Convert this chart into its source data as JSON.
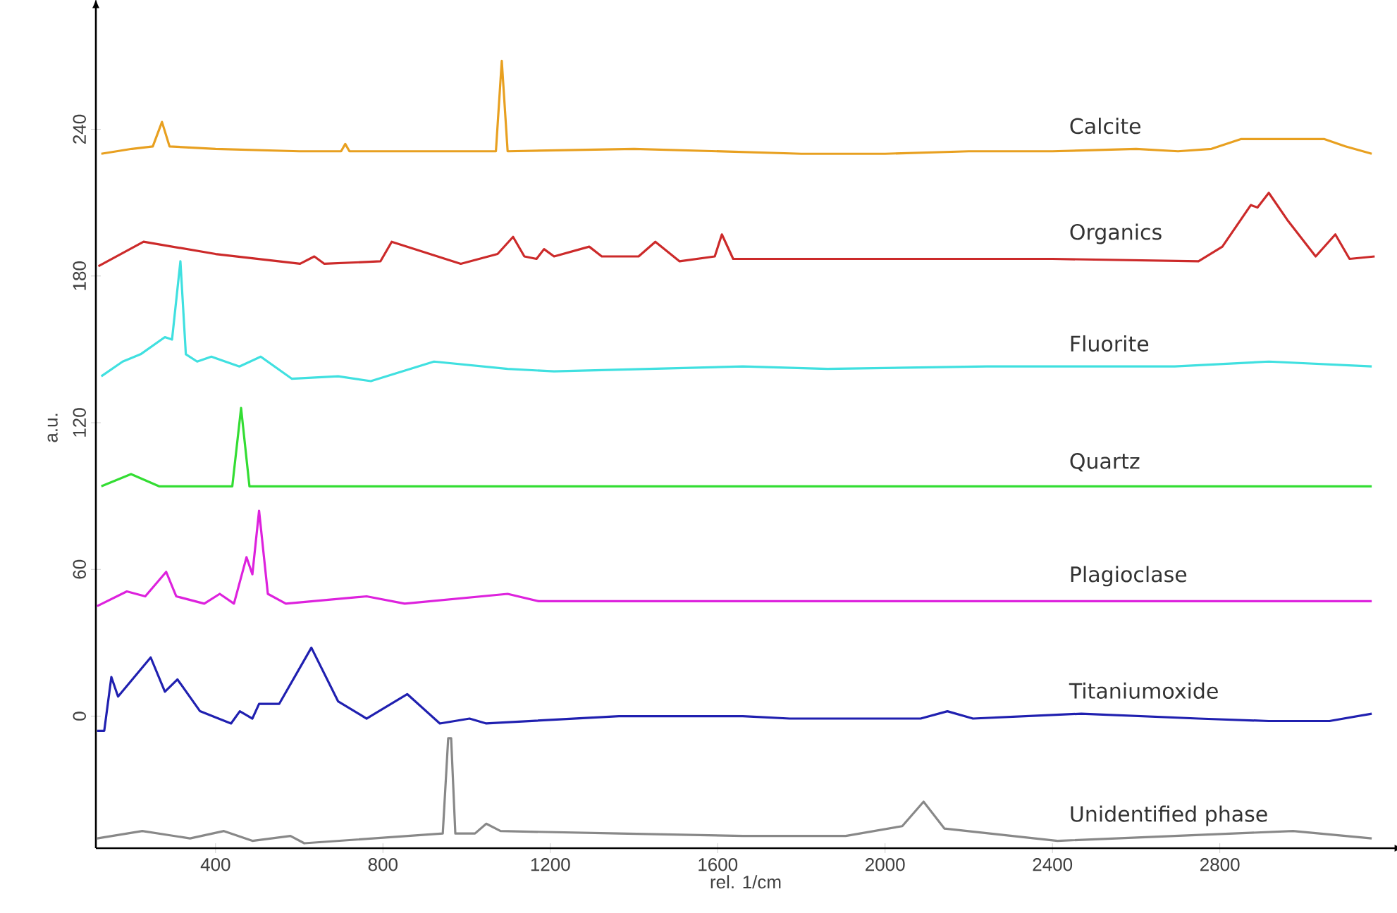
{
  "chart_data": {
    "type": "line",
    "xlabel": "rel. 1/cm",
    "ylabel": "a.u.",
    "xlim": [
      114,
      3220
    ],
    "ylim": [
      -54,
      290
    ],
    "xticks": [
      400,
      800,
      1200,
      1600,
      2000,
      2400,
      2800
    ],
    "yticks": [
      0,
      60,
      120,
      180,
      240
    ],
    "grid": false,
    "legend": false,
    "marker": "none",
    "line_style": "solid",
    "series": [
      {
        "name": "Calcite",
        "color": "#e8a020",
        "x": [
          127,
          200,
          250,
          272,
          290,
          400,
          600,
          700,
          710,
          720,
          1070,
          1084,
          1098,
          1400,
          1800,
          2000,
          2200,
          2400,
          2600,
          2700,
          2780,
          2850,
          2950,
          3050,
          3100,
          3163
        ],
        "values": [
          230,
          232,
          233,
          243,
          233,
          232,
          231,
          231,
          234,
          231,
          231,
          268,
          231,
          232,
          230,
          230,
          231,
          231,
          232,
          231,
          232,
          236,
          236,
          236,
          233,
          230
        ]
      },
      {
        "name": "Organics",
        "color": "#cc2a2a",
        "x": [
          120,
          228,
          400,
          602,
          636,
          660,
          794,
          821,
          986,
          1074,
          1111,
          1138,
          1167,
          1185,
          1209,
          1293,
          1323,
          1411,
          1451,
          1509,
          1593,
          1610,
          1637,
          2000,
          2400,
          2749,
          2806,
          2874,
          2890,
          2917,
          2961,
          3029,
          3076,
          3110,
          3170
        ],
        "values": [
          184,
          194,
          189,
          185,
          188,
          185,
          186,
          194,
          185,
          189,
          196,
          188,
          187,
          191,
          188,
          192,
          188,
          188,
          194,
          186,
          188,
          197,
          187,
          187,
          187,
          186,
          192,
          209,
          208,
          214,
          203,
          188,
          197,
          187,
          188
        ]
      },
      {
        "name": "Fluorite",
        "color": "#40e0e0",
        "x": [
          127,
          178,
          221,
          279,
          296,
          316,
          329,
          356,
          390,
          457,
          508,
          582,
          693,
          771,
          922,
          1098,
          1209,
          1660,
          1862,
          2243,
          2692,
          2917,
          3163
        ],
        "values": [
          139,
          145,
          148,
          155,
          154,
          186,
          148,
          145,
          147,
          143,
          147,
          138,
          139,
          137,
          145,
          142,
          141,
          143,
          142,
          143,
          143,
          145,
          143
        ]
      },
      {
        "name": "Quartz",
        "color": "#33dd33",
        "x": [
          127,
          198,
          265,
          440,
          461,
          481,
          1200,
          2000,
          2800,
          3163
        ],
        "values": [
          94,
          99,
          94,
          94,
          126,
          94,
          94,
          94,
          94,
          94
        ]
      },
      {
        "name": "Plagioclase",
        "color": "#dd22dd",
        "x": [
          117,
          188,
          232,
          282,
          306,
          373,
          410,
          444,
          474,
          488,
          504,
          525,
          568,
          761,
          852,
          1098,
          1172,
          2000,
          2800,
          3163
        ],
        "values": [
          45,
          51,
          49,
          59,
          49,
          46,
          50,
          46,
          65,
          58,
          84,
          50,
          46,
          49,
          46,
          50,
          47,
          47,
          47,
          47
        ]
      },
      {
        "name": "Titaniumoxide",
        "color": "#2020b0",
        "x": [
          117,
          134,
          151,
          167,
          245,
          279,
          309,
          363,
          437,
          458,
          488,
          504,
          552,
          629,
          693,
          761,
          858,
          936,
          1007,
          1047,
          1364,
          1660,
          1772,
          2085,
          2149,
          2210,
          2469,
          2749,
          2917,
          3062,
          3163
        ],
        "values": [
          -6,
          -6,
          16,
          8,
          24,
          10,
          15,
          2,
          -3,
          2,
          -1,
          5,
          5,
          28,
          6,
          -1,
          9,
          -3,
          -1,
          -3,
          0,
          0,
          -1,
          -1,
          2,
          -1,
          1,
          -1,
          -2,
          -2,
          1
        ]
      },
      {
        "name": "Unidentified phase",
        "color": "#888888",
        "x": [
          117,
          225,
          339,
          420,
          488,
          579,
          612,
          943,
          956,
          963,
          973,
          1020,
          1047,
          1081,
          1364,
          1660,
          1906,
          2041,
          2092,
          2142,
          2412,
          2692,
          2975,
          3163
        ],
        "values": [
          -50,
          -47,
          -50,
          -47,
          -51,
          -49,
          -52,
          -48,
          -9,
          -9,
          -48,
          -48,
          -44,
          -47,
          -48,
          -49,
          -49,
          -45,
          -35,
          -46,
          -51,
          -49,
          -47,
          -50
        ]
      }
    ]
  }
}
